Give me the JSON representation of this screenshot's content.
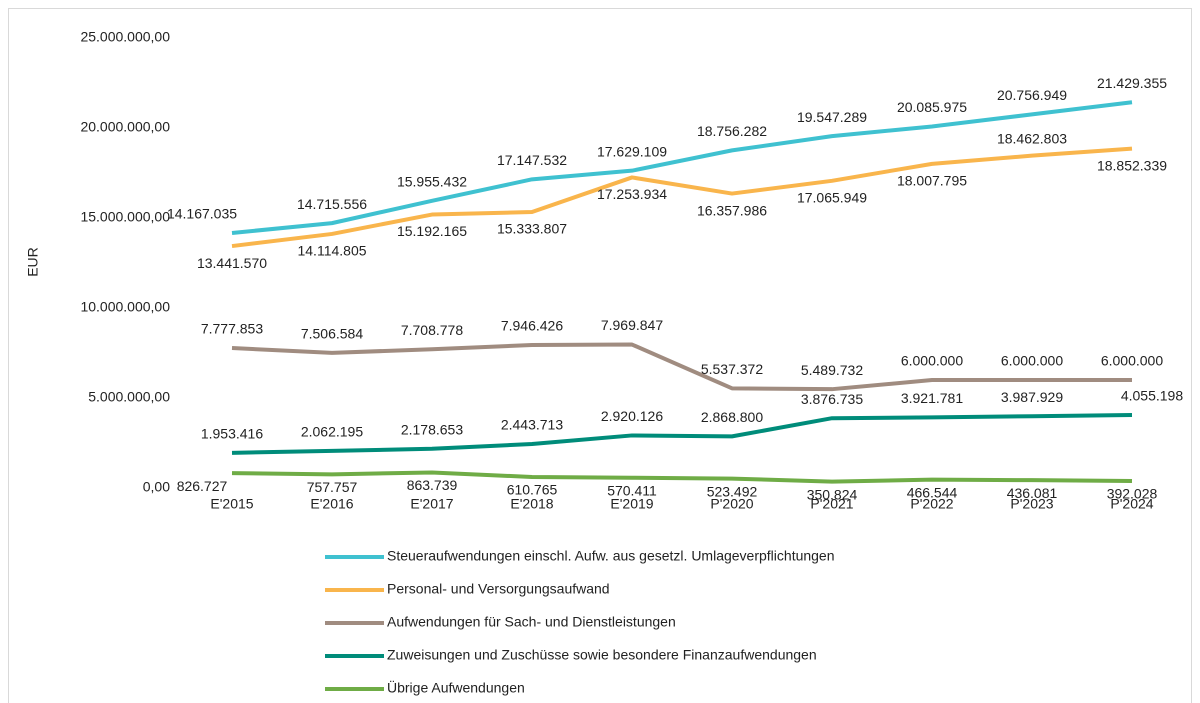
{
  "chart_data": {
    "type": "line",
    "ylabel": "EUR",
    "categories": [
      "E'2015",
      "E'2016",
      "E'2017",
      "E'2018",
      "E'2019",
      "P'2020",
      "P'2021",
      "P'2022",
      "P'2023",
      "P'2024"
    ],
    "series": [
      {
        "name": "Steueraufwendungen einschl. Aufw. aus gesetzl. Umlageverpflichtungen",
        "color": "#3fc1d0",
        "values": [
          14167035,
          14715556,
          15955432,
          17147532,
          17629109,
          18756282,
          19547289,
          20085975,
          20756949,
          21429355
        ],
        "value_labels": [
          "14.167.035",
          "14.715.556",
          "15.955.432",
          "17.147.532",
          "17.629.109",
          "18.756.282",
          "19.547.289",
          "20.085.975",
          "20.756.949",
          "21.429.355"
        ]
      },
      {
        "name": "Personal- und Versorgungsaufwand",
        "color": "#f9b54c",
        "values": [
          13441570,
          14114805,
          15192165,
          15333807,
          17253934,
          16357986,
          17065949,
          18007795,
          18462803,
          18852339
        ],
        "value_labels": [
          "13.441.570",
          "14.114.805",
          "15.192.165",
          "15.333.807",
          "17.253.934",
          "16.357.986",
          "17.065.949",
          "18.007.795",
          "18.462.803",
          "18.852.339"
        ]
      },
      {
        "name": "Aufwendungen für Sach- und Dienstleistungen",
        "color": "#a08c80",
        "values": [
          7777853,
          7506584,
          7708778,
          7946426,
          7969847,
          5537372,
          5489732,
          6000000,
          6000000,
          6000000
        ],
        "value_labels": [
          "7.777.853",
          "7.506.584",
          "7.708.778",
          "7.946.426",
          "7.969.847",
          "5.537.372",
          "5.489.732",
          "6.000.000",
          "6.000.000",
          "6.000.000"
        ]
      },
      {
        "name": "Zuweisungen und Zuschüsse sowie besondere Finanzaufwendungen",
        "color": "#008c7a",
        "values": [
          1953416,
          2062195,
          2178653,
          2443713,
          2920126,
          2868800,
          3876735,
          3921781,
          3987929,
          4055198
        ],
        "value_labels": [
          "1.953.416",
          "2.062.195",
          "2.178.653",
          "2.443.713",
          "2.920.126",
          "2.868.800",
          "3.876.735",
          "3.921.781",
          "3.987.929",
          "4.055.198"
        ]
      },
      {
        "name": "Übrige Aufwendungen",
        "color": "#6fac46",
        "values": [
          826727,
          757757,
          863739,
          610765,
          570411,
          523492,
          350824,
          466544,
          436081,
          392028
        ],
        "value_labels": [
          "826.727",
          "757.757",
          "863.739",
          "610.765",
          "570.411",
          "523.492",
          "350.824",
          "466.544",
          "436.081",
          "392.028"
        ]
      }
    ],
    "ylim": [
      0,
      25000000
    ],
    "yticks": [
      {
        "value": 0,
        "label": "0,00"
      },
      {
        "value": 5000000,
        "label": "5.000.000,00"
      },
      {
        "value": 10000000,
        "label": "10.000.000,00"
      },
      {
        "value": 15000000,
        "label": "15.000.000,00"
      },
      {
        "value": 20000000,
        "label": "20.000.000,00"
      },
      {
        "value": 25000000,
        "label": "25.000.000,00"
      }
    ],
    "legend": "bottom"
  }
}
